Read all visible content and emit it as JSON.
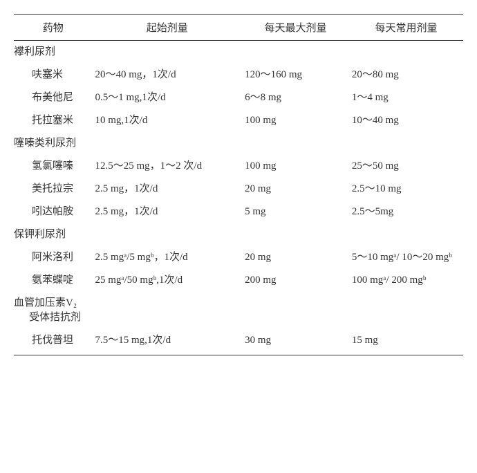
{
  "headers": {
    "drug": "药物",
    "start": "起始剂量",
    "max": "每天最大剂量",
    "common": "每天常用剂量"
  },
  "groups": [
    {
      "name": "襻利尿剂",
      "subname": "",
      "rows": [
        {
          "drug": "呋塞米",
          "start": "20～40 mg，1次/d",
          "max": "120～160 mg",
          "common": "20～80 mg"
        },
        {
          "drug": "布美他尼",
          "start": "0.5～1 mg,1次/d",
          "max": "6～8 mg",
          "common": "1～4 mg"
        },
        {
          "drug": "托拉塞米",
          "start": "10 mg,1次/d",
          "max": "100 mg",
          "common": "10～40 mg"
        }
      ]
    },
    {
      "name": "噻嗪类利尿剂",
      "subname": "",
      "rows": [
        {
          "drug": "氢氯噻嗪",
          "start": "12.5～25 mg，1～2 次/d",
          "max": "100 mg",
          "common": "25～50 mg"
        },
        {
          "drug": "美托拉宗",
          "start": "2.5 mg，1次/d",
          "max": "20 mg",
          "common": "2.5～10 mg"
        },
        {
          "drug": "吲达帕胺",
          "start": "2.5 mg，1次/d",
          "max": "5 mg",
          "common": "2.5～5mg"
        }
      ]
    },
    {
      "name": "保钾利尿剂",
      "subname": "",
      "rows": [
        {
          "drug": "阿米洛利",
          "start": "2.5 mgᵃ/5 mgᵇ，1次/d",
          "max": "20 mg",
          "common": "5～10 mgᵃ/ 10～20 mgᵇ"
        },
        {
          "drug": "氨苯蝶啶",
          "start": "25 mgᵃ/50 mgᵇ,1次/d",
          "max": "200 mg",
          "common": "100 mgᵃ/ 200 mgᵇ"
        }
      ]
    },
    {
      "name": "血管加压素V₂",
      "subname": "受体拮抗剂",
      "rows": [
        {
          "drug": "托伐普坦",
          "start": "7.5～15 mg,1次/d",
          "max": "30 mg",
          "common": "15 mg"
        }
      ]
    }
  ]
}
